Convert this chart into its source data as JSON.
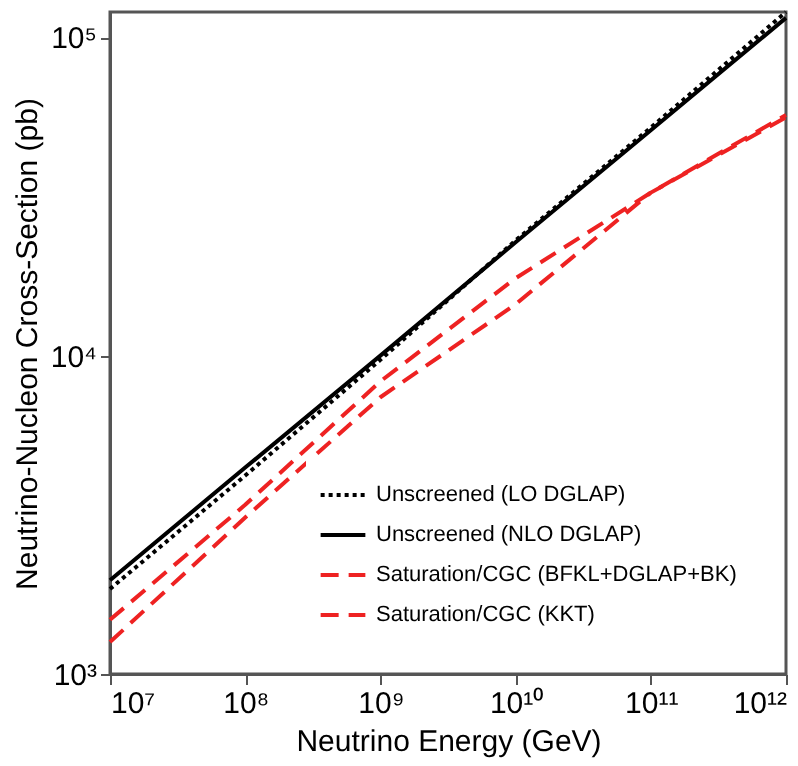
{
  "chart_data": {
    "type": "line",
    "xlabel": "Neutrino Energy (GeV)",
    "ylabel": "Neutrino-Nucleon Cross-Section (pb)",
    "log": "xy",
    "xlim": [
      10000000,
      1000000000000
    ],
    "ylim": [
      1000,
      120000
    ],
    "xticks": [
      {
        "value": 10000000,
        "label": "10⁷"
      },
      {
        "value": 100000000,
        "label": "10⁸"
      },
      {
        "value": 1000000000,
        "label": "10⁹"
      },
      {
        "value": 10000000000,
        "label": "10¹⁰"
      },
      {
        "value": 100000000000,
        "label": "10¹¹"
      },
      {
        "value": 1000000000000,
        "label": "10¹²"
      }
    ],
    "yticks": [
      {
        "value": 1000,
        "label": "10³"
      },
      {
        "value": 10000,
        "label": "10⁴"
      },
      {
        "value": 100000,
        "label": "10⁵"
      }
    ],
    "x": [
      10000000,
      100000000,
      1000000000,
      10000000000,
      100000000000,
      1000000000000
    ],
    "legend": "bottom right",
    "grid": false,
    "series": [
      {
        "name": "Unscreened (LO DGLAP)",
        "color": "#000000",
        "line_style": "dotted",
        "values": [
          1850,
          4200,
          9700,
          23000,
          52000,
          120000
        ]
      },
      {
        "name": "Unscreened (NLO DGLAP)",
        "color": "#000000",
        "line_style": "solid",
        "values": [
          1970,
          4450,
          10000,
          22700,
          51000,
          115000
        ]
      },
      {
        "name": "Saturation/CGC (BFKL+DGLAP+BK)",
        "color": "#ee2222",
        "line_style": "dashed",
        "values": [
          1480,
          3400,
          8300,
          17500,
          32500,
          57000
        ]
      },
      {
        "name": "Saturation/CGC (KKT)",
        "color": "#ee2222",
        "line_style": "dashed",
        "values": [
          1260,
          3100,
          7400,
          14500,
          32500,
          56000
        ]
      }
    ]
  }
}
